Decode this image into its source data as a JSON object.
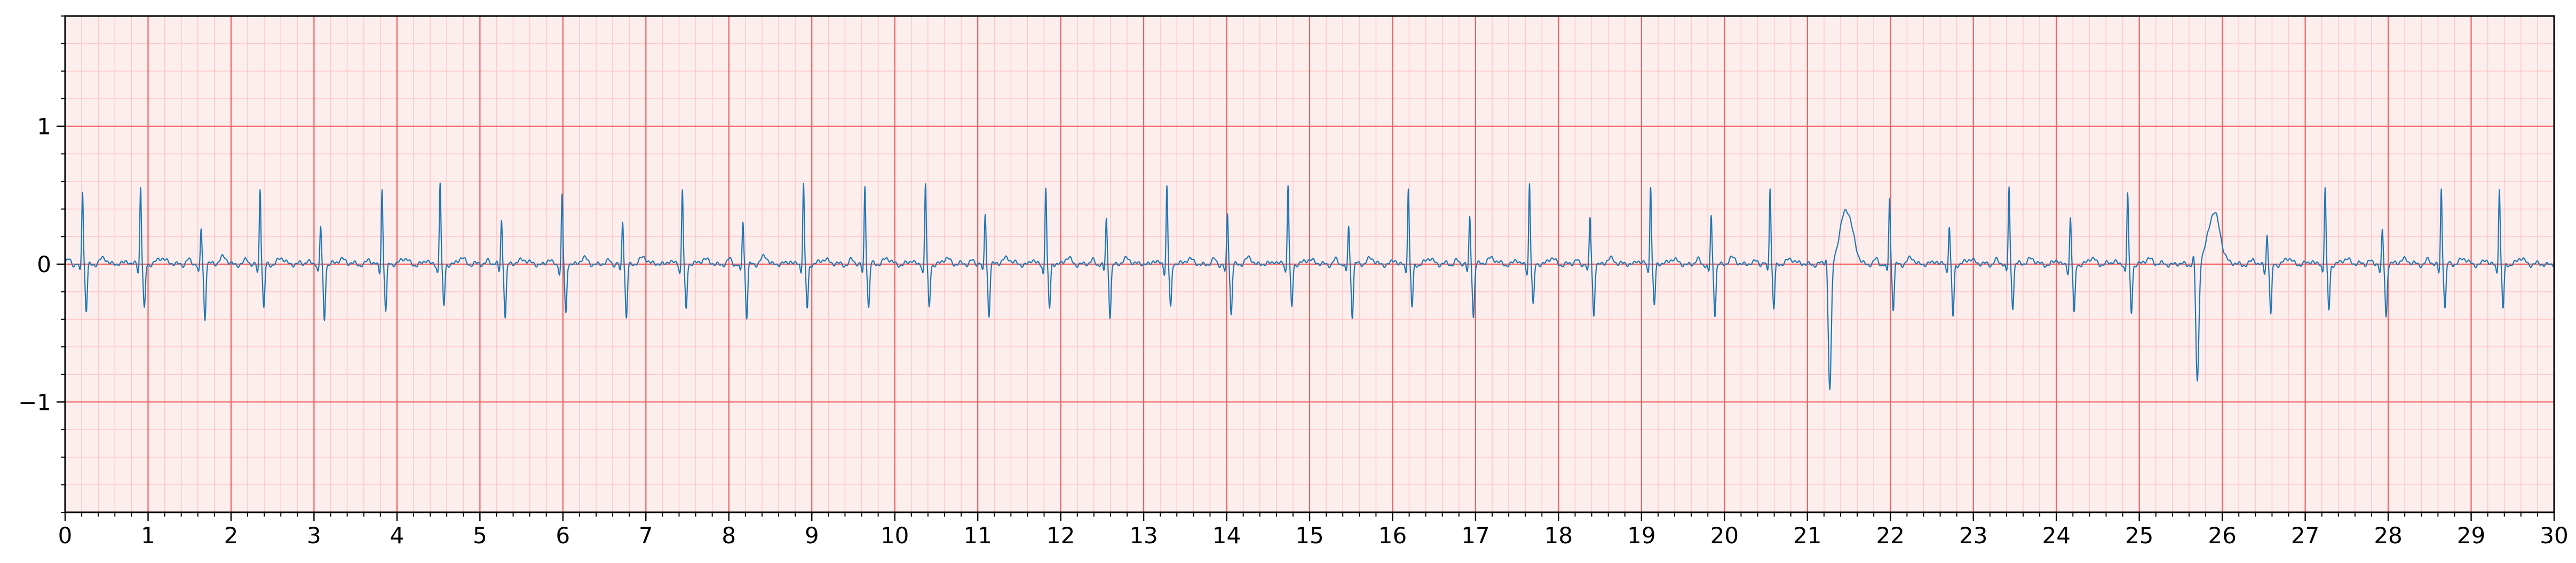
{
  "chart_data": {
    "type": "line",
    "title": "",
    "xlabel": "",
    "ylabel": "",
    "xlim": [
      0,
      30
    ],
    "ylim": [
      -1.8,
      1.8
    ],
    "x_ticks": [
      0,
      1,
      2,
      3,
      4,
      5,
      6,
      7,
      8,
      9,
      10,
      11,
      12,
      13,
      14,
      15,
      16,
      17,
      18,
      19,
      20,
      21,
      22,
      23,
      24,
      25,
      26,
      27,
      28,
      29,
      30
    ],
    "x_tick_labels": [
      "0",
      "1",
      "2",
      "3",
      "4",
      "5",
      "6",
      "7",
      "8",
      "9",
      "10",
      "11",
      "12",
      "13",
      "14",
      "15",
      "16",
      "17",
      "18",
      "19",
      "20",
      "21",
      "22",
      "23",
      "24",
      "25",
      "26",
      "27",
      "28",
      "29",
      "30"
    ],
    "y_ticks": [
      -1,
      0,
      1
    ],
    "y_tick_labels": [
      "−1",
      "0",
      "1"
    ],
    "grid": true,
    "grid_major_step": [
      1,
      1
    ],
    "grid_minor_step": [
      0.2,
      0.2
    ],
    "grid_major_color": "#f06060",
    "grid_minor_color": "#ffc8c8",
    "line_color": "#1f77b4",
    "background": "#fdeeee",
    "beats": [
      {
        "t": 0.21,
        "r": 0.53,
        "s": -0.34,
        "tw": 0.04
      },
      {
        "t": 0.91,
        "r": 0.56,
        "s": -0.33,
        "tw": 0.05
      },
      {
        "t": 1.64,
        "r": 0.26,
        "s": -0.4,
        "tw": 0.05
      },
      {
        "t": 2.35,
        "r": 0.55,
        "s": -0.33,
        "tw": 0.04
      },
      {
        "t": 3.08,
        "r": 0.27,
        "s": -0.4,
        "tw": 0.04
      },
      {
        "t": 3.82,
        "r": 0.55,
        "s": -0.35,
        "tw": 0.04
      },
      {
        "t": 4.52,
        "r": 0.59,
        "s": -0.31,
        "tw": 0.04
      },
      {
        "t": 5.26,
        "r": 0.32,
        "s": -0.38,
        "tw": 0.04
      },
      {
        "t": 5.99,
        "r": 0.5,
        "s": -0.37,
        "tw": 0.04
      },
      {
        "t": 6.72,
        "r": 0.31,
        "s": -0.39,
        "tw": 0.05
      },
      {
        "t": 7.44,
        "r": 0.55,
        "s": -0.33,
        "tw": 0.04
      },
      {
        "t": 8.17,
        "r": 0.31,
        "s": -0.39,
        "tw": 0.05
      },
      {
        "t": 8.9,
        "r": 0.58,
        "s": -0.32,
        "tw": 0.04
      },
      {
        "t": 9.64,
        "r": 0.57,
        "s": -0.32,
        "tw": 0.04
      },
      {
        "t": 10.37,
        "r": 0.58,
        "s": -0.32,
        "tw": 0.04
      },
      {
        "t": 11.09,
        "r": 0.37,
        "s": -0.37,
        "tw": 0.05
      },
      {
        "t": 11.82,
        "r": 0.56,
        "s": -0.33,
        "tw": 0.04
      },
      {
        "t": 12.55,
        "r": 0.32,
        "s": -0.38,
        "tw": 0.04
      },
      {
        "t": 13.28,
        "r": 0.57,
        "s": -0.32,
        "tw": 0.04
      },
      {
        "t": 14.01,
        "r": 0.36,
        "s": -0.37,
        "tw": 0.04
      },
      {
        "t": 14.74,
        "r": 0.58,
        "s": -0.31,
        "tw": 0.04
      },
      {
        "t": 15.47,
        "r": 0.28,
        "s": -0.38,
        "tw": 0.04
      },
      {
        "t": 16.19,
        "r": 0.55,
        "s": -0.32,
        "tw": 0.04
      },
      {
        "t": 16.93,
        "r": 0.34,
        "s": -0.38,
        "tw": 0.05
      },
      {
        "t": 17.65,
        "r": 0.59,
        "s": -0.31,
        "tw": 0.04
      },
      {
        "t": 18.38,
        "r": 0.33,
        "s": -0.37,
        "tw": 0.04
      },
      {
        "t": 19.11,
        "r": 0.58,
        "s": -0.3,
        "tw": 0.04
      },
      {
        "t": 19.84,
        "r": 0.34,
        "s": -0.37,
        "tw": 0.04
      },
      {
        "t": 20.55,
        "r": 0.56,
        "s": -0.32,
        "tw": 0.04
      },
      {
        "t": 21.27,
        "r": -0.92,
        "s": 0.05,
        "tw": 0.4,
        "pvc": true
      },
      {
        "t": 21.99,
        "r": 0.48,
        "s": -0.33,
        "tw": 0.04
      },
      {
        "t": 22.71,
        "r": 0.27,
        "s": -0.38,
        "tw": 0.04
      },
      {
        "t": 23.43,
        "r": 0.56,
        "s": -0.31,
        "tw": 0.04
      },
      {
        "t": 24.17,
        "r": 0.33,
        "s": -0.37,
        "tw": 0.04
      },
      {
        "t": 24.86,
        "r": 0.51,
        "s": -0.35,
        "tw": 0.04
      },
      {
        "t": 25.7,
        "r": -0.87,
        "s": 0.05,
        "tw": 0.37,
        "pvc": true
      },
      {
        "t": 26.54,
        "r": 0.21,
        "s": -0.38,
        "tw": 0.04
      },
      {
        "t": 27.24,
        "r": 0.55,
        "s": -0.33,
        "tw": 0.04
      },
      {
        "t": 27.93,
        "r": 0.24,
        "s": -0.38,
        "tw": 0.04
      },
      {
        "t": 28.64,
        "r": 0.55,
        "s": -0.32,
        "tw": 0.04
      },
      {
        "t": 29.34,
        "r": 0.55,
        "s": -0.33,
        "tw": 0.04
      }
    ]
  }
}
